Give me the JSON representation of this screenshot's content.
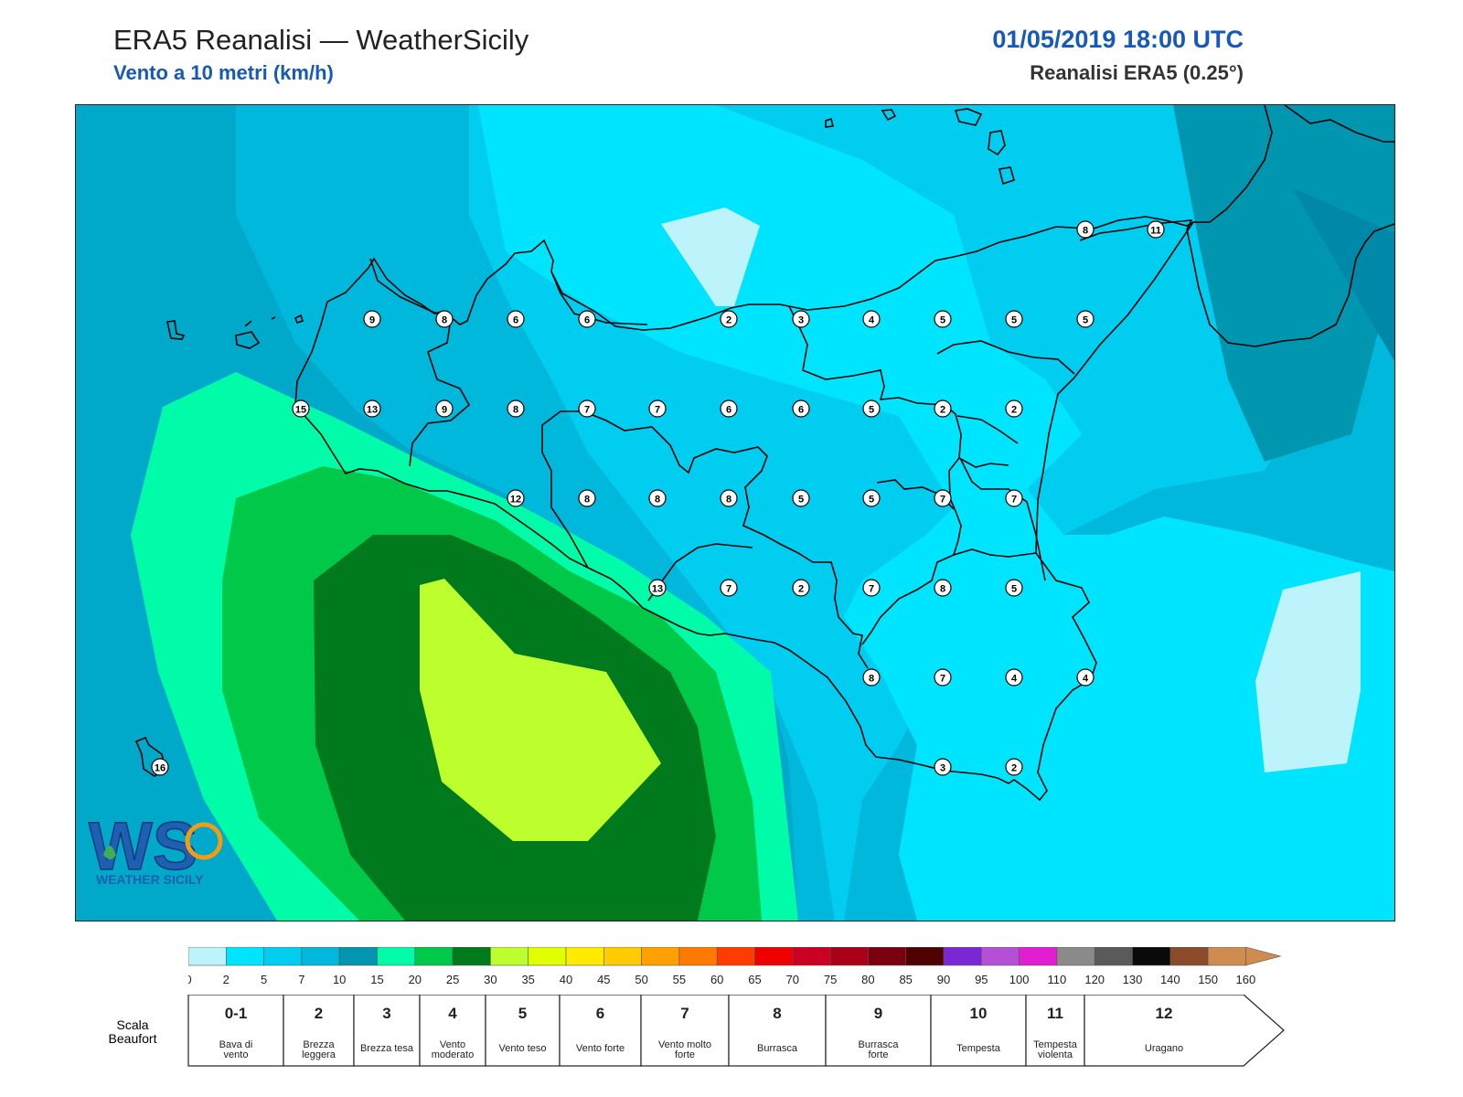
{
  "header": {
    "title": "ERA5 Reanalisi — WeatherSicily",
    "subtitle": "Vento a 10 metri (km/h)",
    "datetime": "01/05/2019 18:00 UTC",
    "model": "Reanalisi ERA5 (0.25°)"
  },
  "logo": {
    "initials": "WS",
    "name": "WEATHER SICILY"
  },
  "colors": {
    "sea_base": "#00a8ca",
    "land_outline": "#000000",
    "station_fill": "#ffffff"
  },
  "colorbar": {
    "bounds": [
      0,
      2,
      5,
      7,
      10,
      15,
      20,
      25,
      30,
      35,
      40,
      45,
      50,
      55,
      60,
      65,
      70,
      75,
      80,
      85,
      90,
      95,
      100,
      110,
      120,
      130,
      140,
      150,
      160
    ],
    "colors": [
      "#bdf3fb",
      "#00e5ff",
      "#00cdf0",
      "#00b8dc",
      "#0096b0",
      "#00fca8",
      "#00c848",
      "#007a1c",
      "#bcff2c",
      "#e2ff00",
      "#ffea00",
      "#ffcc00",
      "#ffa000",
      "#ff7800",
      "#ff3c00",
      "#ee0000",
      "#cc0022",
      "#aa0018",
      "#7a0010",
      "#500000",
      "#7a28d6",
      "#b450d8",
      "#e21ed2",
      "#8a8a8a",
      "#5a5a5a",
      "#0a0a0a",
      "#8a4b2a",
      "#d08c50"
    ]
  },
  "beaufort": {
    "label": "Scala Beaufort",
    "classes": [
      {
        "num": "0-1",
        "desc": "Bava di vento"
      },
      {
        "num": "2",
        "desc": "Brezza leggera"
      },
      {
        "num": "3",
        "desc": "Brezza tesa"
      },
      {
        "num": "4",
        "desc": "Vento moderato"
      },
      {
        "num": "5",
        "desc": "Vento teso"
      },
      {
        "num": "6",
        "desc": "Vento forte"
      },
      {
        "num": "7",
        "desc": "Vento molto forte"
      },
      {
        "num": "8",
        "desc": "Burrasca"
      },
      {
        "num": "9",
        "desc": "Burrasca forte"
      },
      {
        "num": "10",
        "desc": "Tempesta"
      },
      {
        "num": "11",
        "desc": "Tempesta violenta"
      },
      {
        "num": "12",
        "desc": "Uragano"
      }
    ]
  },
  "stations": [
    {
      "id": "r1c1",
      "value": "9"
    },
    {
      "id": "r1c2",
      "value": "8"
    },
    {
      "id": "r1c3",
      "value": "6"
    },
    {
      "id": "r1c4",
      "value": "6"
    },
    {
      "id": "r1c5",
      "value": "2"
    },
    {
      "id": "r1c6",
      "value": "3"
    },
    {
      "id": "r1c7",
      "value": "4"
    },
    {
      "id": "r1c8",
      "value": "5"
    },
    {
      "id": "r1c9",
      "value": "5"
    },
    {
      "id": "r1c10",
      "value": "5"
    },
    {
      "id": "r0a",
      "value": "8"
    },
    {
      "id": "r0b",
      "value": "11"
    },
    {
      "id": "r2c0",
      "value": "15"
    },
    {
      "id": "r2c1",
      "value": "13"
    },
    {
      "id": "r2c2",
      "value": "9"
    },
    {
      "id": "r2c3",
      "value": "8"
    },
    {
      "id": "r2c4",
      "value": "7"
    },
    {
      "id": "r2c5",
      "value": "7"
    },
    {
      "id": "r2c6",
      "value": "6"
    },
    {
      "id": "r2c7",
      "value": "6"
    },
    {
      "id": "r2c8",
      "value": "5"
    },
    {
      "id": "r2c9",
      "value": "2"
    },
    {
      "id": "r2c10",
      "value": "2"
    },
    {
      "id": "r3c3",
      "value": "12"
    },
    {
      "id": "r3c4",
      "value": "8"
    },
    {
      "id": "r3c5",
      "value": "8"
    },
    {
      "id": "r3c6",
      "value": "8"
    },
    {
      "id": "r3c7",
      "value": "5"
    },
    {
      "id": "r3c8",
      "value": "5"
    },
    {
      "id": "r3c9",
      "value": "7"
    },
    {
      "id": "r3c10",
      "value": "7"
    },
    {
      "id": "r4c5",
      "value": "13"
    },
    {
      "id": "r4c6",
      "value": "7"
    },
    {
      "id": "r4c7",
      "value": "2"
    },
    {
      "id": "r4c8",
      "value": "7"
    },
    {
      "id": "r4c9",
      "value": "8"
    },
    {
      "id": "r4c10",
      "value": "5"
    },
    {
      "id": "r5c8",
      "value": "8"
    },
    {
      "id": "r5c9",
      "value": "7"
    },
    {
      "id": "r5c10",
      "value": "4"
    },
    {
      "id": "r5c11",
      "value": "4"
    },
    {
      "id": "r6c9",
      "value": "3"
    },
    {
      "id": "r6c10",
      "value": "2"
    },
    {
      "id": "pant",
      "value": "16"
    }
  ]
}
